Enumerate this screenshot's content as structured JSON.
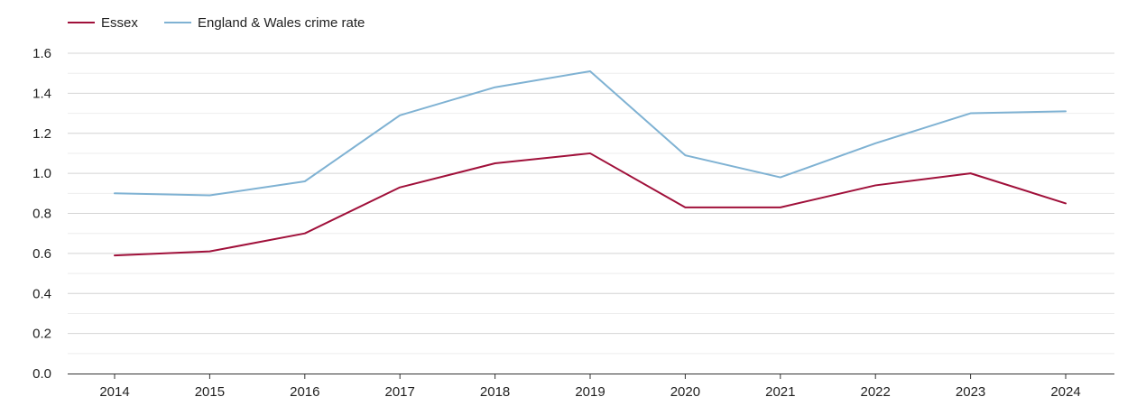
{
  "chart_data": {
    "type": "line",
    "title": "",
    "xlabel": "",
    "ylabel": "",
    "x": [
      "2014",
      "2015",
      "2016",
      "2017",
      "2018",
      "2019",
      "2020",
      "2021",
      "2022",
      "2023",
      "2024"
    ],
    "ylim": [
      0,
      1.6
    ],
    "yticks": [
      "0.0",
      "0.2",
      "0.4",
      "0.6",
      "0.8",
      "1.0",
      "1.2",
      "1.4",
      "1.6"
    ],
    "minor_gridlines": true,
    "legend_position": "top-left",
    "series": [
      {
        "name": "Essex",
        "color": "#a0103a",
        "values": [
          0.59,
          0.61,
          0.7,
          0.93,
          1.05,
          1.1,
          0.83,
          0.83,
          0.94,
          1.0,
          0.85
        ]
      },
      {
        "name": "England & Wales crime rate",
        "color": "#7fb2d3",
        "values": [
          0.9,
          0.89,
          0.96,
          1.29,
          1.43,
          1.51,
          1.09,
          0.98,
          1.15,
          1.3,
          1.31
        ]
      }
    ]
  }
}
